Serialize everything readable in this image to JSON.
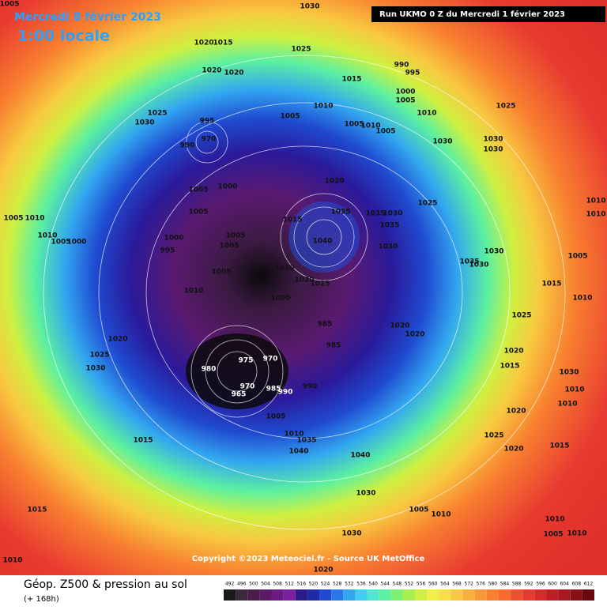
{
  "header": {
    "date": "Mercredi 8 février 2023",
    "time": "1:00 locale",
    "run": "Run UKMO 0 Z du Mercredi 1 février 2023"
  },
  "copyright": "Copyright ©2023 Meteociel.fr - Source UK MetOffice",
  "legend": {
    "title": "Géop. Z500 & pression au sol",
    "subtitle": "(+ 168h)",
    "ticks": [
      492,
      496,
      500,
      504,
      508,
      512,
      516,
      520,
      524,
      528,
      532,
      536,
      540,
      544,
      548,
      552,
      556,
      560,
      564,
      568,
      572,
      576,
      580,
      584,
      588,
      592,
      596,
      600,
      604,
      608,
      612
    ],
    "colors": [
      "#1a1a1a",
      "#3a2a3a",
      "#4b1d4b",
      "#5a1a66",
      "#6a1a80",
      "#7a1fa0",
      "#2a1a8a",
      "#1e2aa8",
      "#1f4ad0",
      "#2a78e8",
      "#32a6f0",
      "#3fd0f0",
      "#4fe8d0",
      "#5cf0a0",
      "#7cf070",
      "#a8f050",
      "#d0f040",
      "#f0f040",
      "#f8e040",
      "#f8c840",
      "#f8b038",
      "#f89838",
      "#f88030",
      "#f86a30",
      "#f05030",
      "#e83a30",
      "#d82a2a",
      "#c01e24",
      "#a81820",
      "#8a1018",
      "#680810"
    ]
  },
  "pressure_labels": [
    1005,
    1030,
    1020,
    1015,
    1025,
    990,
    995,
    1015,
    1020,
    1020,
    1000,
    1005,
    1010,
    1025,
    1010,
    1005,
    1025,
    1030,
    995,
    970,
    990,
    1005,
    1010,
    1005,
    1030,
    1030,
    1030,
    1020,
    1005,
    1000,
    1025,
    1035,
    1035,
    1030,
    1035,
    1015,
    1040,
    1030,
    1005,
    1010,
    1005,
    1010,
    1010,
    1010,
    1005,
    1000,
    1000,
    1005,
    1005,
    995,
    1035,
    1030,
    1030,
    1005,
    1005,
    1010,
    1020,
    1025,
    1005,
    1015,
    1010,
    1000,
    1010,
    985,
    1025,
    1020,
    1020,
    985,
    1020,
    1025,
    980,
    975,
    970,
    1030,
    1020,
    1015,
    1030,
    1010,
    970,
    985,
    990,
    990,
    965,
    1010,
    1020,
    1005,
    1010,
    1035,
    1025,
    1015,
    1040,
    1040,
    1020,
    1015,
    1030,
    1005,
    1010,
    1015,
    1010,
    1030,
    1005,
    1010,
    1010,
    1020
  ]
}
